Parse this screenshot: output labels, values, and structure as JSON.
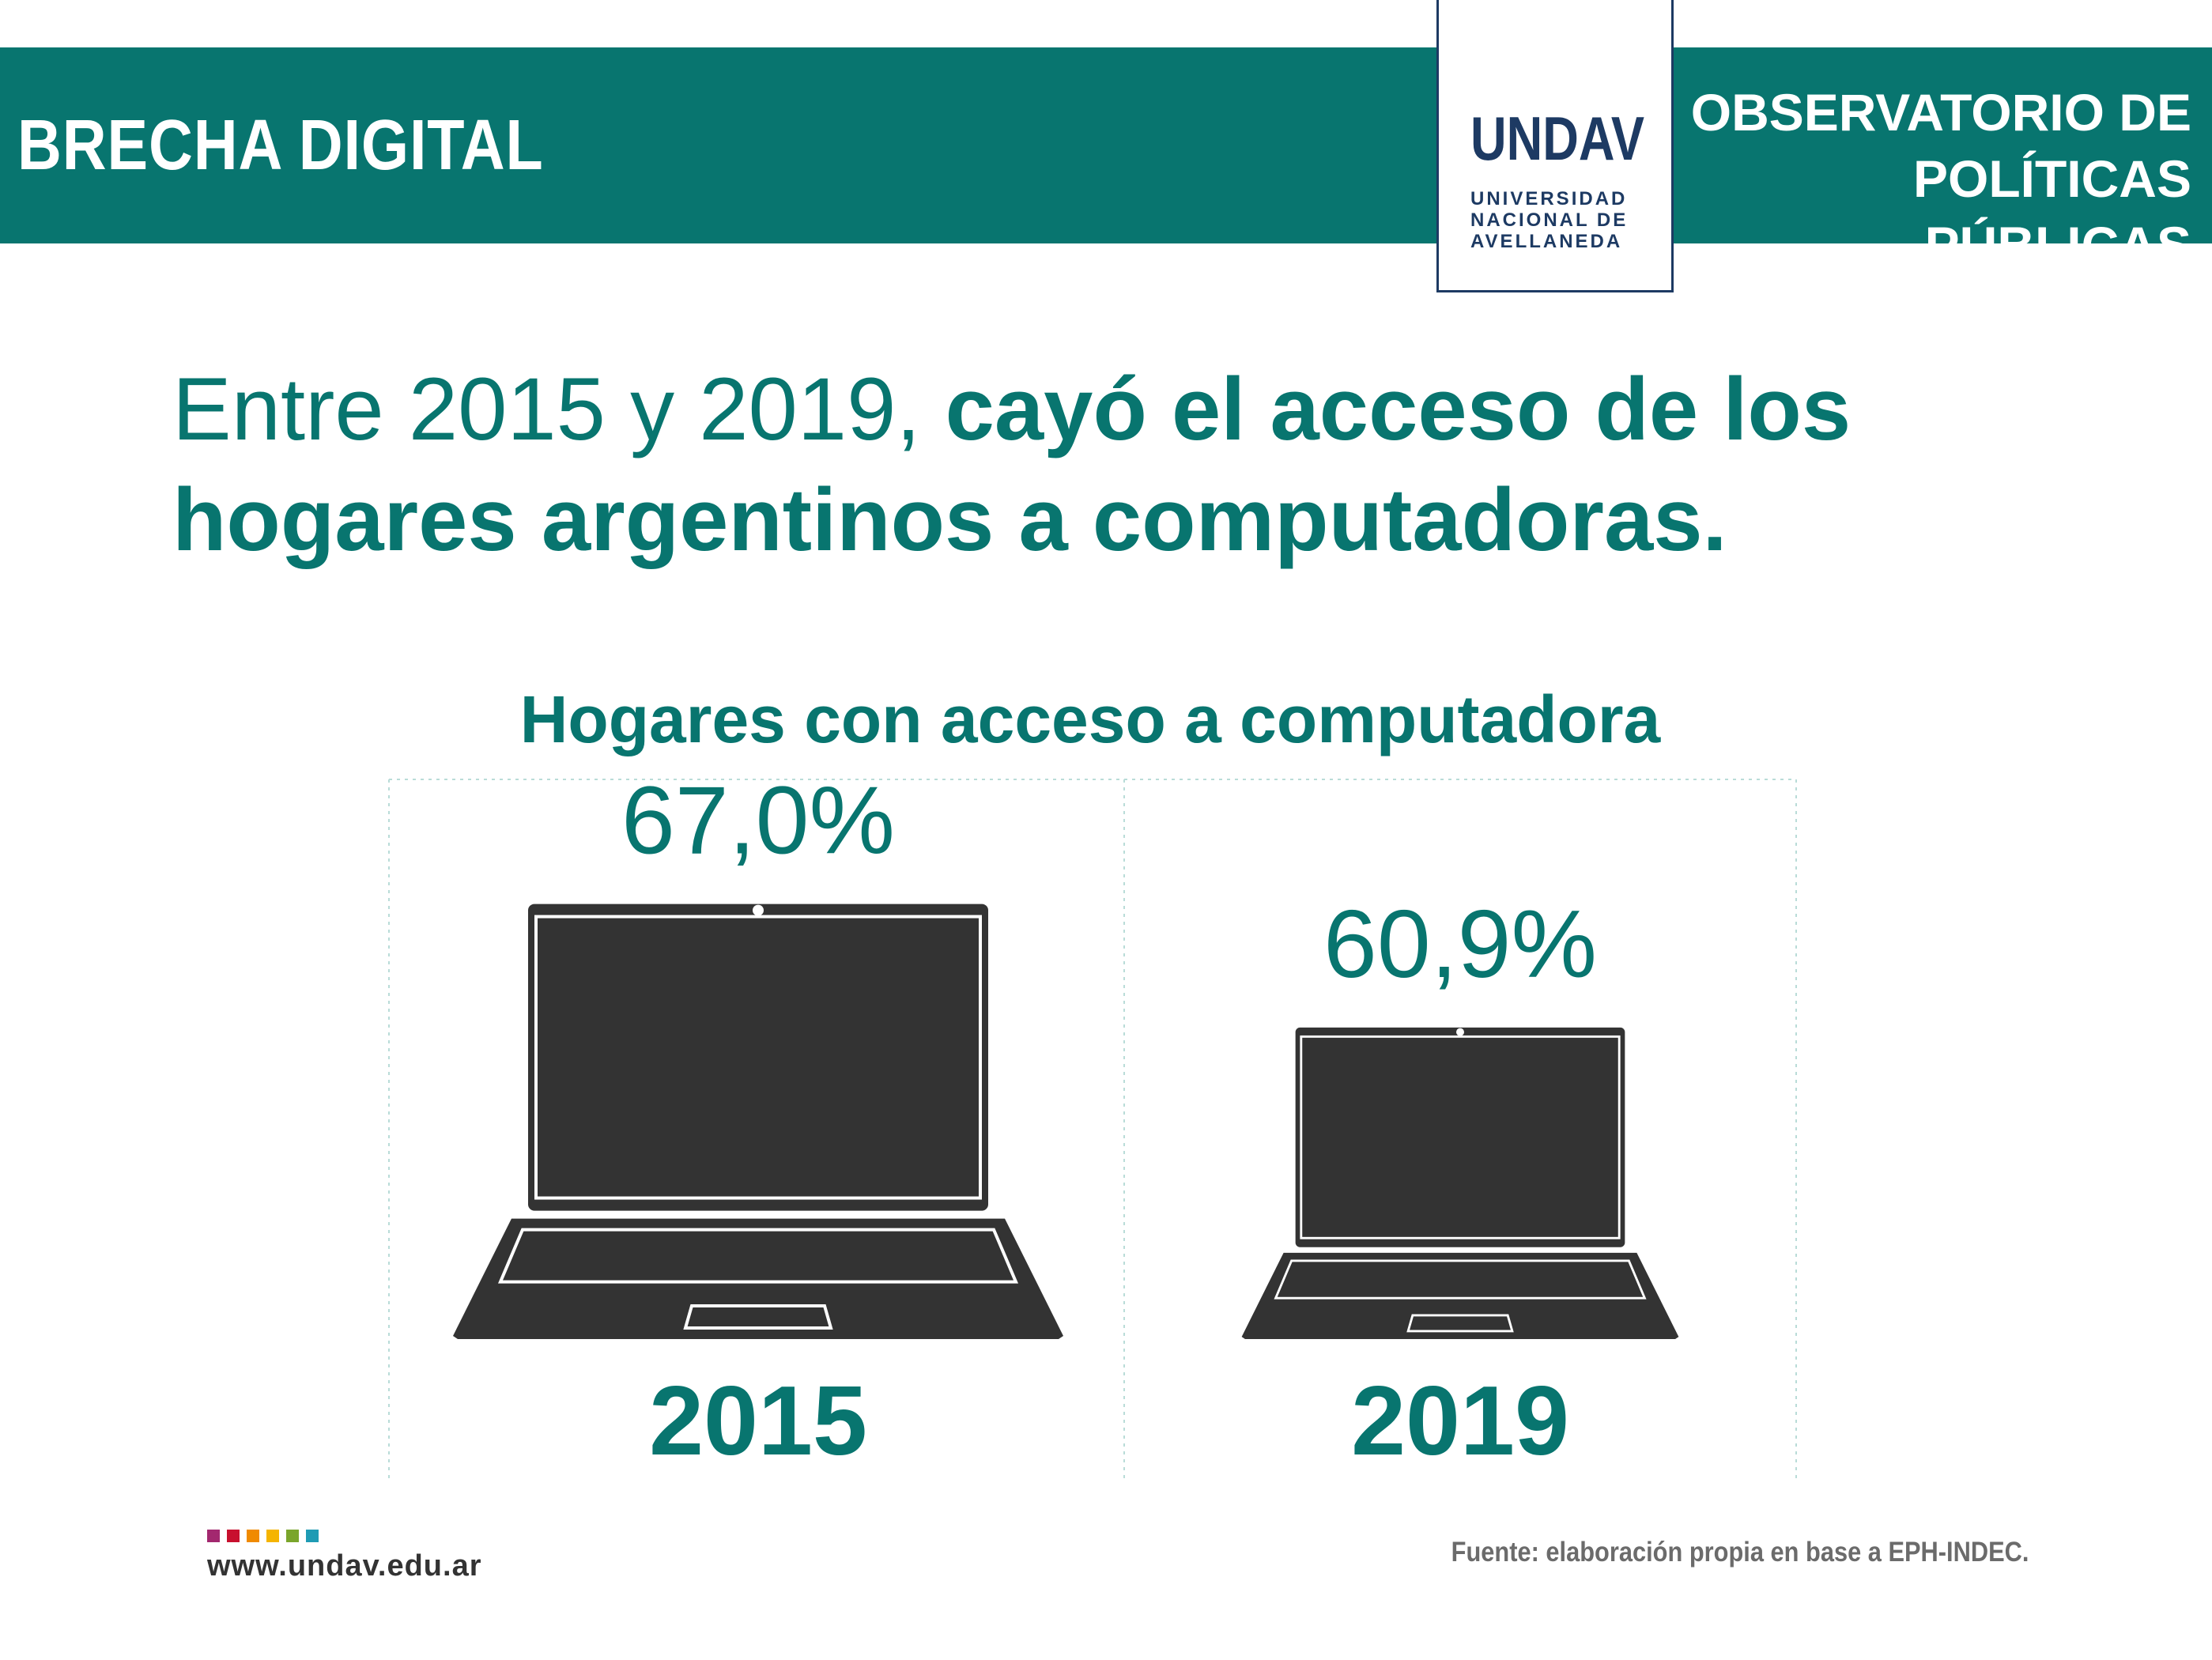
{
  "header": {
    "section_label": "BRECHA DIGITAL",
    "observatory_line1": "OBSERVATORIO DE",
    "observatory_line2": "POLÍTICAS PÚBLICAS",
    "logo_mark": "UNDAV",
    "logo_line1": "UNIVERSIDAD",
    "logo_line2": "NACIONAL DE",
    "logo_line3": "AVELLANEDA"
  },
  "headline": {
    "regular": "Entre 2015 y 2019, ",
    "bold": "cayó el acceso de los hogares argentinos a computadoras."
  },
  "chart_data": {
    "type": "bar",
    "title": "Hogares con acceso a computadora",
    "categories": [
      "2015",
      "2019"
    ],
    "values": [
      67.0,
      60.9
    ],
    "value_labels": [
      "67,0%",
      "60,9%"
    ],
    "unit": "%",
    "mark": "laptop-icon",
    "grid": false
  },
  "footer": {
    "url": "www.undav.edu.ar",
    "source": "Fuente: elaboración propia en base a EPH-INDEC.",
    "dot_colors": [
      "#a3286f",
      "#c8102e",
      "#f08a00",
      "#f5b400",
      "#7aa52b",
      "#1f9bb4"
    ]
  },
  "colors": {
    "brand_teal": "#08756f",
    "laptop": "#333333",
    "logo_navy": "#1d3a63",
    "divider": "#b9dcd8"
  }
}
